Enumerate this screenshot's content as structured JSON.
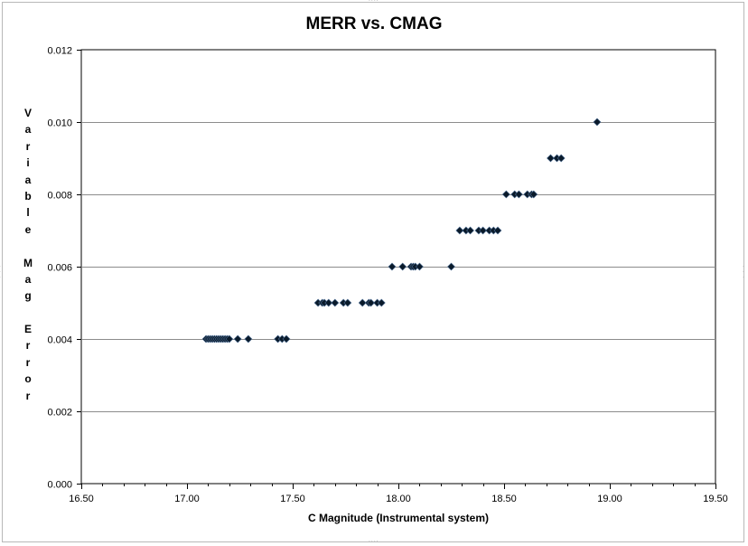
{
  "chart_data": {
    "type": "scatter",
    "title": "MERR vs. CMAG",
    "xlabel": "C Magnitude (Instrumental system)",
    "ylabel": "Variable Mag Error",
    "ylabel_words": [
      "Variable",
      "Mag",
      "Error"
    ],
    "xlim": [
      16.5,
      19.5
    ],
    "ylim": [
      0.0,
      0.012
    ],
    "x_ticks": [
      "16.50",
      "17.00",
      "17.50",
      "18.00",
      "18.50",
      "19.00",
      "19.50"
    ],
    "y_ticks": [
      "0.000",
      "0.002",
      "0.004",
      "0.006",
      "0.008",
      "0.010",
      "0.012"
    ],
    "grid": "horizontal",
    "legend": "none",
    "marker": "diamond",
    "marker_color": "#0a1a2a",
    "series": [
      {
        "points": [
          [
            17.09,
            0.004
          ],
          [
            17.1,
            0.004
          ],
          [
            17.11,
            0.004
          ],
          [
            17.12,
            0.004
          ],
          [
            17.13,
            0.004
          ],
          [
            17.14,
            0.004
          ],
          [
            17.15,
            0.004
          ],
          [
            17.16,
            0.004
          ],
          [
            17.17,
            0.004
          ],
          [
            17.18,
            0.004
          ],
          [
            17.19,
            0.004
          ],
          [
            17.2,
            0.004
          ],
          [
            17.24,
            0.004
          ],
          [
            17.29,
            0.004
          ],
          [
            17.43,
            0.004
          ],
          [
            17.45,
            0.004
          ],
          [
            17.47,
            0.004
          ],
          [
            17.62,
            0.005
          ],
          [
            17.64,
            0.005
          ],
          [
            17.65,
            0.005
          ],
          [
            17.67,
            0.005
          ],
          [
            17.7,
            0.005
          ],
          [
            17.74,
            0.005
          ],
          [
            17.76,
            0.005
          ],
          [
            17.83,
            0.005
          ],
          [
            17.86,
            0.005
          ],
          [
            17.87,
            0.005
          ],
          [
            17.9,
            0.005
          ],
          [
            17.92,
            0.005
          ],
          [
            17.97,
            0.006
          ],
          [
            18.02,
            0.006
          ],
          [
            18.06,
            0.006
          ],
          [
            18.07,
            0.006
          ],
          [
            18.08,
            0.006
          ],
          [
            18.1,
            0.006
          ],
          [
            18.25,
            0.006
          ],
          [
            18.29,
            0.007
          ],
          [
            18.32,
            0.007
          ],
          [
            18.34,
            0.007
          ],
          [
            18.38,
            0.007
          ],
          [
            18.4,
            0.007
          ],
          [
            18.43,
            0.007
          ],
          [
            18.45,
            0.007
          ],
          [
            18.47,
            0.007
          ],
          [
            18.51,
            0.008
          ],
          [
            18.55,
            0.008
          ],
          [
            18.57,
            0.008
          ],
          [
            18.61,
            0.008
          ],
          [
            18.63,
            0.008
          ],
          [
            18.64,
            0.008
          ],
          [
            18.72,
            0.009
          ],
          [
            18.75,
            0.009
          ],
          [
            18.77,
            0.009
          ],
          [
            18.94,
            0.01
          ]
        ]
      }
    ]
  }
}
